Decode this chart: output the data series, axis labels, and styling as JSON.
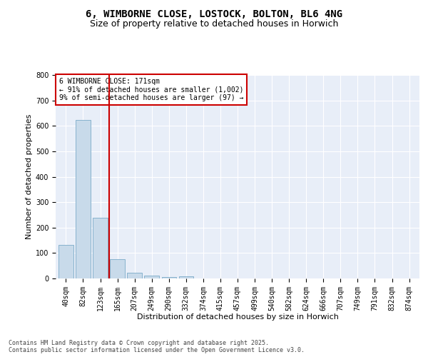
{
  "title": "6, WIMBORNE CLOSE, LOSTOCK, BOLTON, BL6 4NG",
  "subtitle": "Size of property relative to detached houses in Horwich",
  "xlabel": "Distribution of detached houses by size in Horwich",
  "ylabel": "Number of detached properties",
  "categories": [
    "40sqm",
    "82sqm",
    "123sqm",
    "165sqm",
    "207sqm",
    "249sqm",
    "290sqm",
    "332sqm",
    "374sqm",
    "415sqm",
    "457sqm",
    "499sqm",
    "540sqm",
    "582sqm",
    "624sqm",
    "666sqm",
    "707sqm",
    "749sqm",
    "791sqm",
    "832sqm",
    "874sqm"
  ],
  "values": [
    132,
    622,
    238,
    77,
    23,
    12,
    5,
    8,
    0,
    0,
    0,
    0,
    0,
    0,
    0,
    0,
    0,
    0,
    0,
    0,
    0
  ],
  "bar_color": "#c8daea",
  "bar_edge_color": "#7aaac8",
  "vline_x": 3.0,
  "vline_color": "#cc0000",
  "annotation_text": "6 WIMBORNE CLOSE: 171sqm\n← 91% of detached houses are smaller (1,002)\n9% of semi-detached houses are larger (97) →",
  "annotation_box_color": "#cc0000",
  "ylim": [
    0,
    800
  ],
  "yticks": [
    0,
    100,
    200,
    300,
    400,
    500,
    600,
    700,
    800
  ],
  "grid_color": "#ffffff",
  "background_color": "#e8eef8",
  "footer": "Contains HM Land Registry data © Crown copyright and database right 2025.\nContains public sector information licensed under the Open Government Licence v3.0.",
  "title_fontsize": 10,
  "subtitle_fontsize": 9,
  "axis_label_fontsize": 8,
  "tick_fontsize": 7,
  "annotation_fontsize": 7,
  "footer_fontsize": 6
}
